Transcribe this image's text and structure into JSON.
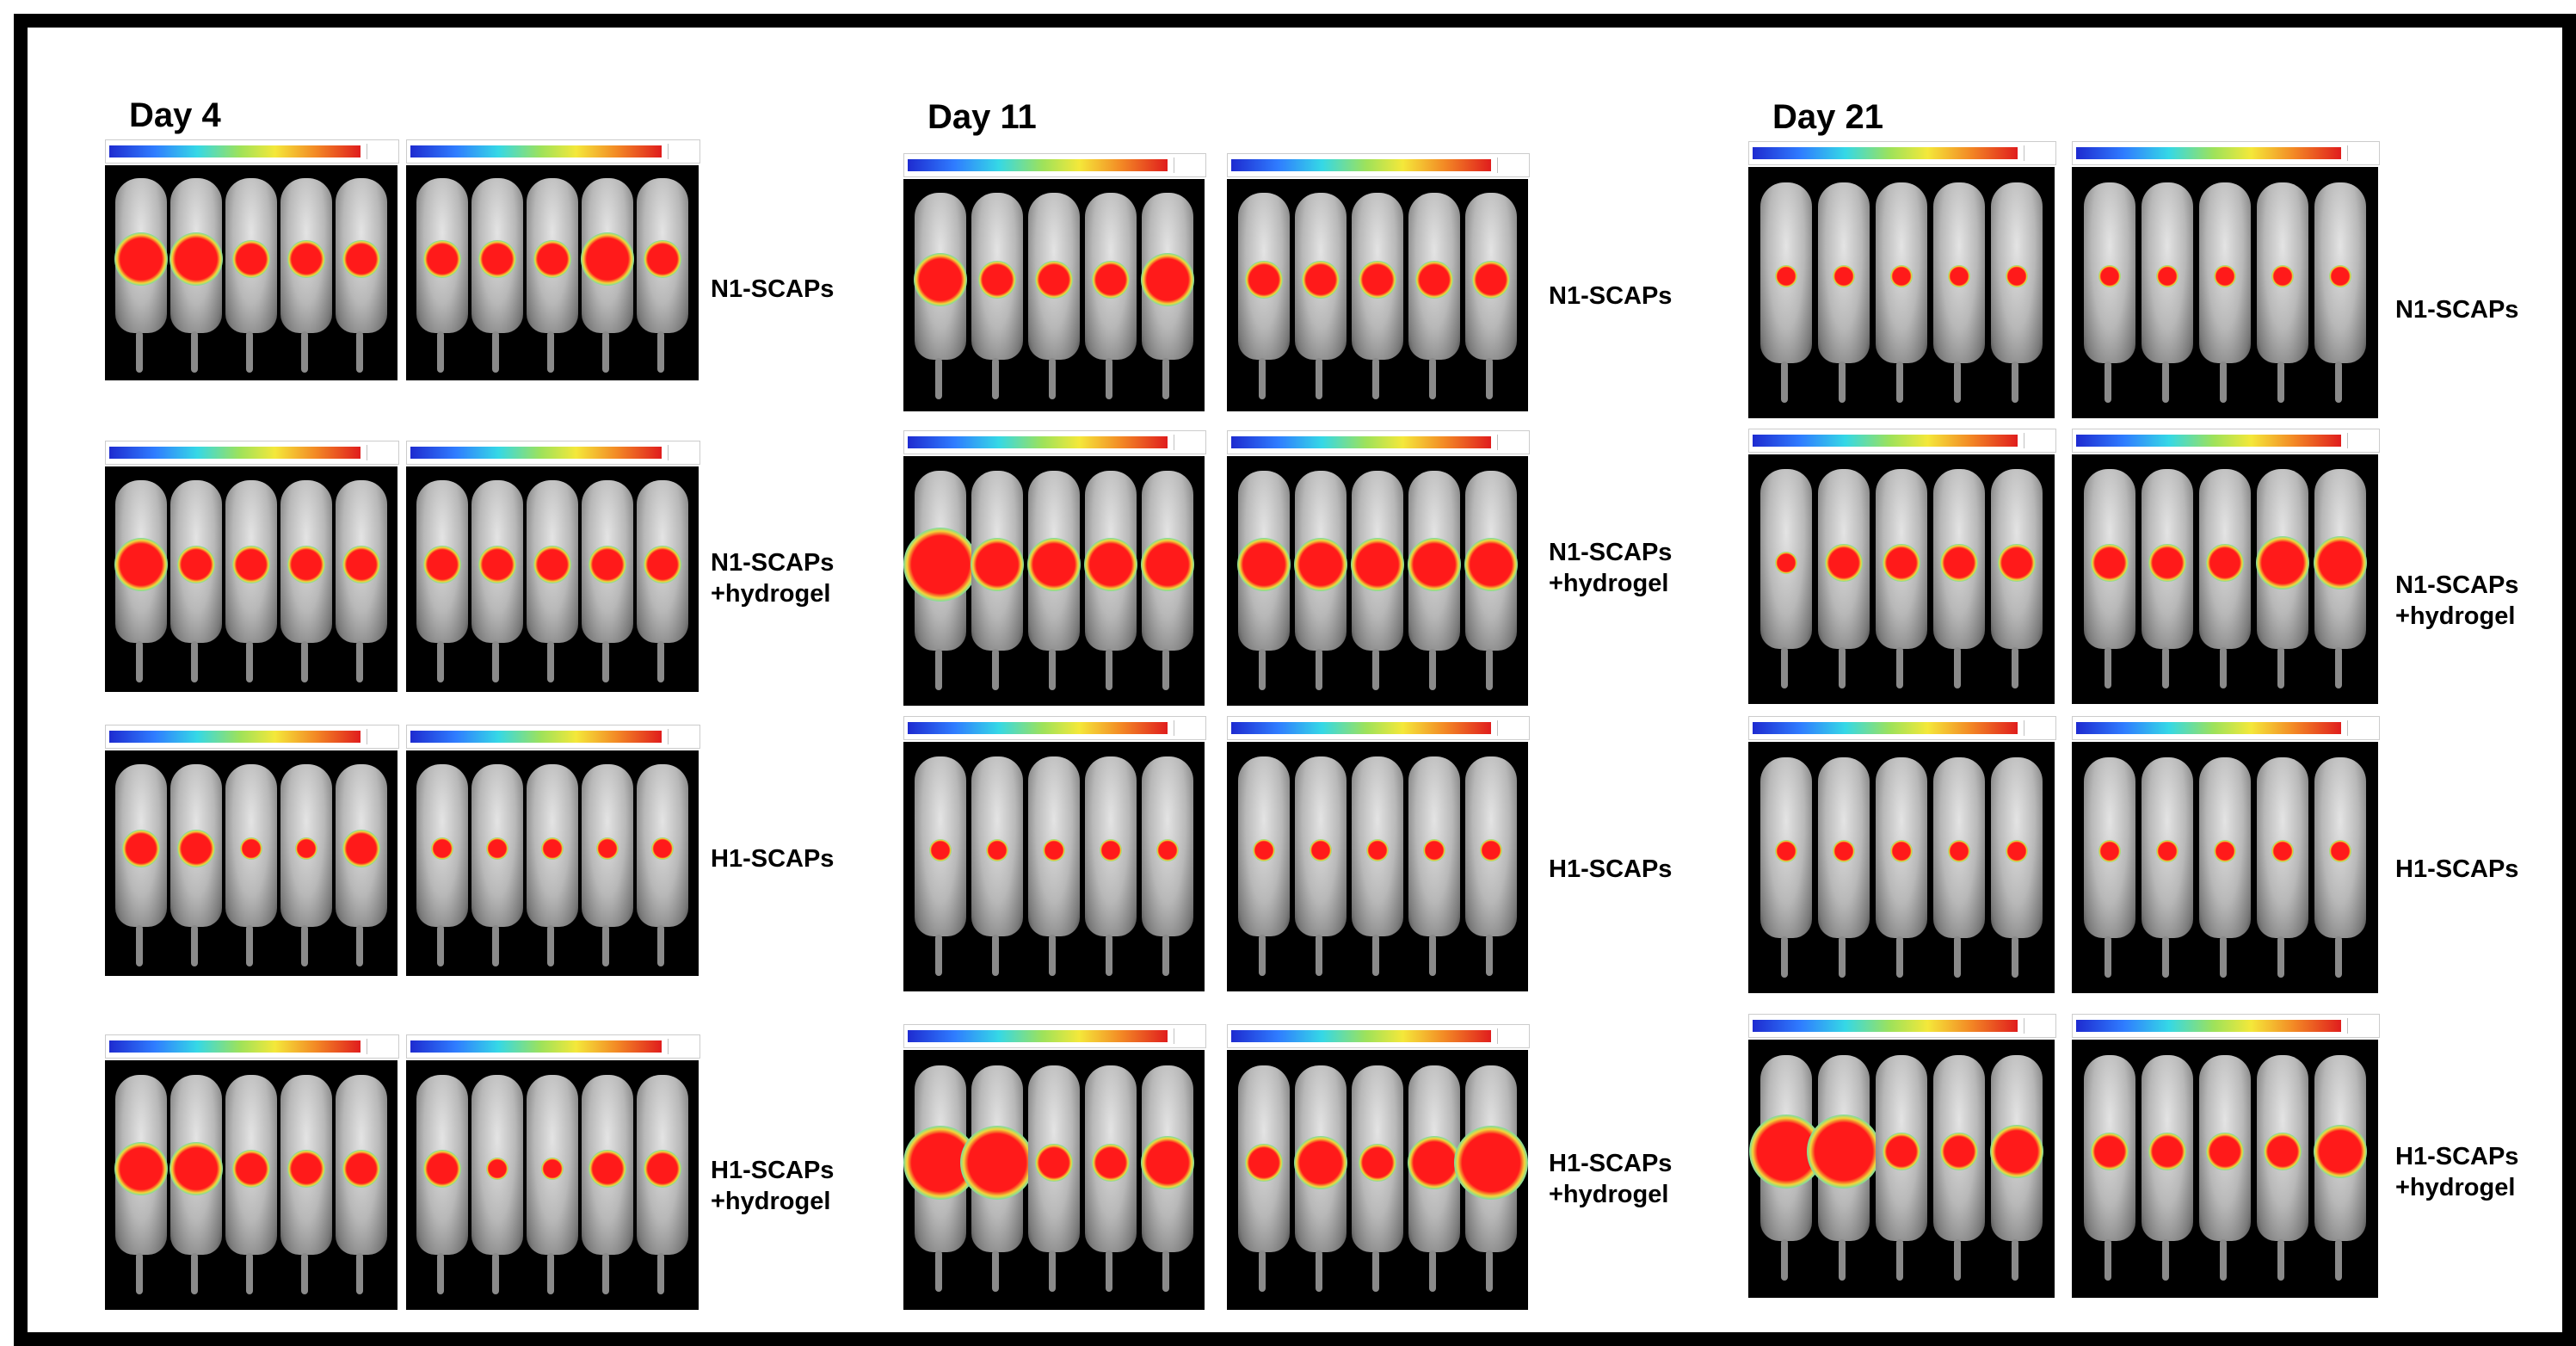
{
  "figure": {
    "days": [
      {
        "title": "Day 4",
        "rows": [
          {
            "label_line1": "N1-SCAPs",
            "label_line2": "",
            "left_spots": [
              3,
              3,
              2,
              2,
              2
            ],
            "right_spots": [
              2,
              2,
              2,
              3,
              2
            ]
          },
          {
            "label_line1": "N1-SCAPs",
            "label_line2": "+hydrogel",
            "left_spots": [
              3,
              2,
              2,
              2,
              2
            ],
            "right_spots": [
              2,
              2,
              2,
              2,
              2
            ]
          },
          {
            "label_line1": "H1-SCAPs",
            "label_line2": "",
            "left_spots": [
              2,
              2,
              1,
              1,
              2
            ],
            "right_spots": [
              1,
              1,
              1,
              1,
              1
            ]
          },
          {
            "label_line1": "H1-SCAPs",
            "label_line2": "+hydrogel",
            "left_spots": [
              3,
              3,
              2,
              2,
              2
            ],
            "right_spots": [
              2,
              1,
              1,
              2,
              2
            ]
          }
        ]
      },
      {
        "title": "Day 11",
        "rows": [
          {
            "label_line1": "N1-SCAPs",
            "label_line2": "",
            "left_spots": [
              3,
              2,
              2,
              2,
              3
            ],
            "right_spots": [
              2,
              2,
              2,
              2,
              2
            ]
          },
          {
            "label_line1": "N1-SCAPs",
            "label_line2": "+hydrogel",
            "left_spots": [
              4,
              3,
              3,
              3,
              3
            ],
            "right_spots": [
              3,
              3,
              3,
              3,
              3
            ]
          },
          {
            "label_line1": "H1-SCAPs",
            "label_line2": "",
            "left_spots": [
              1,
              1,
              1,
              1,
              1
            ],
            "right_spots": [
              1,
              1,
              1,
              1,
              1
            ]
          },
          {
            "label_line1": "H1-SCAPs",
            "label_line2": "+hydrogel",
            "left_spots": [
              4,
              4,
              2,
              2,
              3
            ],
            "right_spots": [
              2,
              3,
              2,
              3,
              4
            ]
          }
        ]
      },
      {
        "title": "Day 21",
        "rows": [
          {
            "label_line1": "N1-SCAPs",
            "label_line2": "",
            "left_spots": [
              1,
              1,
              1,
              1,
              1
            ],
            "right_spots": [
              1,
              1,
              1,
              1,
              1
            ]
          },
          {
            "label_line1": "N1-SCAPs",
            "label_line2": "+hydrogel",
            "left_spots": [
              1,
              2,
              2,
              2,
              2
            ],
            "right_spots": [
              2,
              2,
              2,
              3,
              3
            ]
          },
          {
            "label_line1": "H1-SCAPs",
            "label_line2": "",
            "left_spots": [
              1,
              1,
              1,
              1,
              1
            ],
            "right_spots": [
              1,
              1,
              1,
              1,
              1
            ]
          },
          {
            "label_line1": "H1-SCAPs",
            "label_line2": "+hydrogel",
            "left_spots": [
              4,
              4,
              2,
              2,
              3
            ],
            "right_spots": [
              2,
              2,
              2,
              2,
              3
            ]
          }
        ]
      }
    ]
  }
}
